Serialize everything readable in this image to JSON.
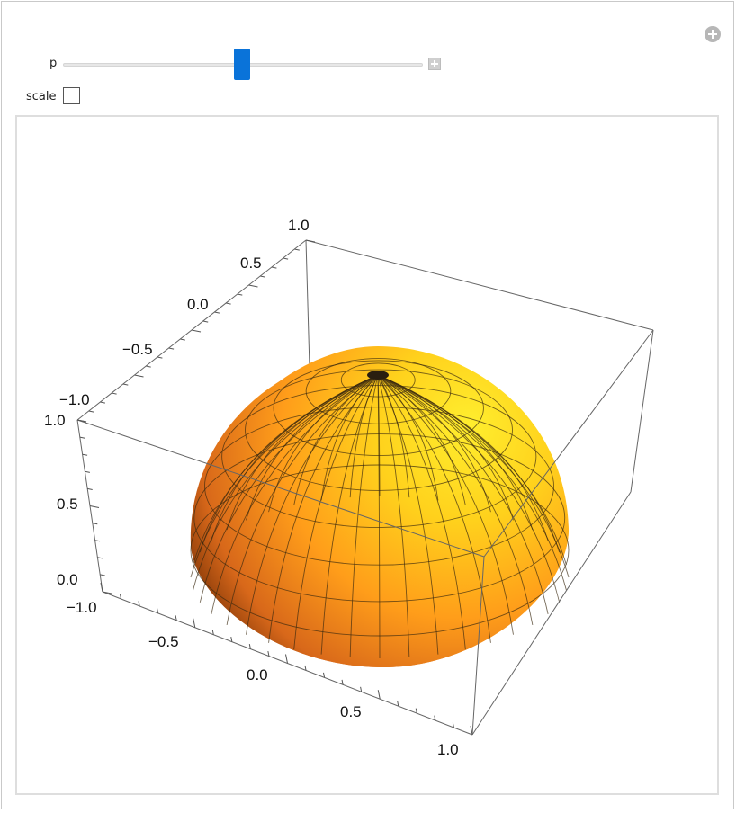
{
  "controls": {
    "slider": {
      "label": "p",
      "value_fraction": 0.5
    },
    "scale_checkbox": {
      "label": "scale",
      "checked": false
    }
  },
  "axes": {
    "left_axis_ticks": [
      "−1.0",
      "−0.5",
      "0.0",
      "0.5",
      "1.0"
    ],
    "vertical_axis_ticks": [
      "0.0",
      "0.5",
      "1.0"
    ],
    "bottom_axis_ticks": [
      "−1.0",
      "−0.5",
      "0.0",
      "0.5",
      "1.0"
    ]
  },
  "surface": {
    "type": "hemisphere",
    "color_light": "#ffe829",
    "color_dark": "#8a3a06",
    "mesh_color": "#3a2a10"
  }
}
